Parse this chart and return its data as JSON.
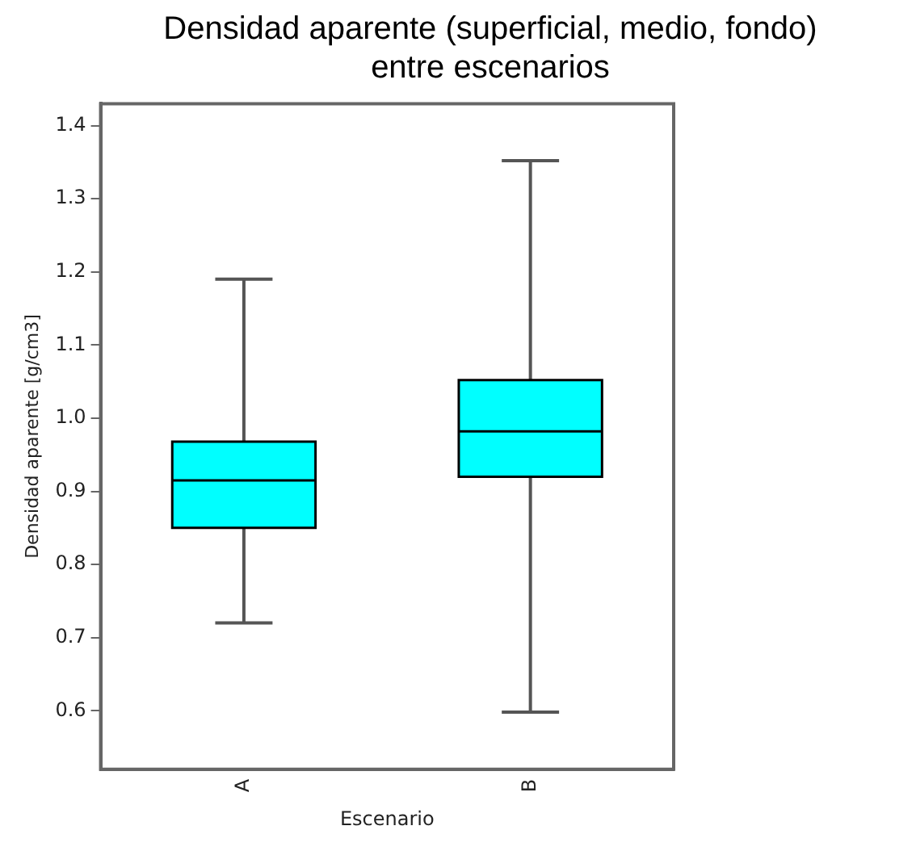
{
  "chart_data": {
    "type": "box",
    "title": "Densidad aparente (superficial, medio, fondo) entre escenarios",
    "xlabel": "Escenario",
    "ylabel": "Densidad aparente [g/cm3]",
    "categories": [
      "A",
      "B"
    ],
    "boxes": [
      {
        "low": 0.72,
        "q1": 0.85,
        "median": 0.915,
        "q3": 0.968,
        "high": 1.19
      },
      {
        "low": 0.598,
        "q1": 0.92,
        "median": 0.982,
        "q3": 1.052,
        "high": 1.352
      }
    ],
    "color": "#00ffff",
    "ylim": [
      0.52,
      1.43
    ],
    "yticks": [
      0.6,
      0.7,
      0.8,
      0.9,
      {
        "value": 1,
        "label": "1.0"
      },
      1.1,
      1.2,
      1.3,
      1.4
    ],
    "grid": false,
    "legend": false
  }
}
